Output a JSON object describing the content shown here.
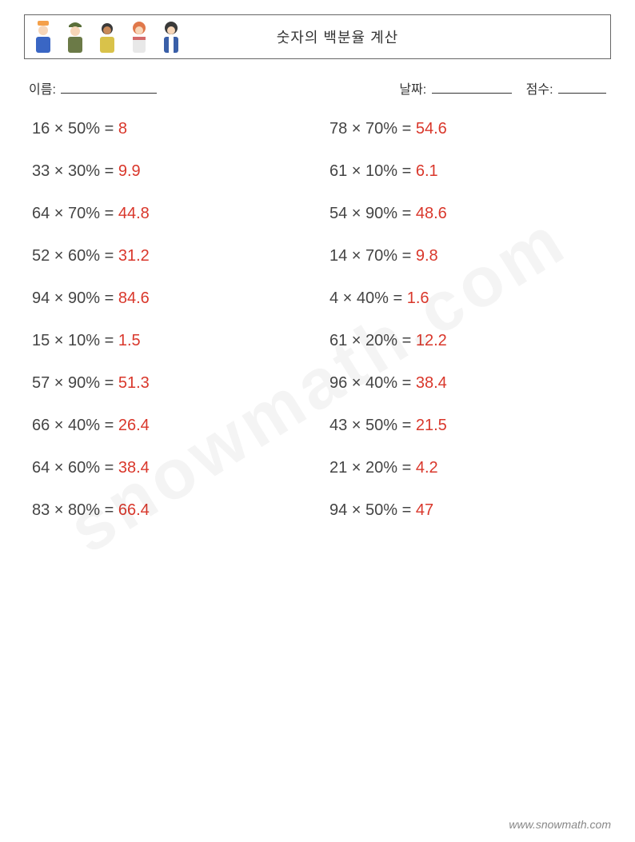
{
  "header": {
    "title": "숫자의 백분율 계산"
  },
  "meta": {
    "name_label": "이름:",
    "date_label": "날짜:",
    "score_label": "점수:"
  },
  "colors": {
    "answer": "#d9372b",
    "text": "#444444",
    "border": "#666666"
  },
  "problems_left": [
    {
      "expr": "16 × 50% = ",
      "ans": "8"
    },
    {
      "expr": "33 × 30% = ",
      "ans": "9.9"
    },
    {
      "expr": "64 × 70% = ",
      "ans": "44.8"
    },
    {
      "expr": "52 × 60% = ",
      "ans": "31.2"
    },
    {
      "expr": "94 × 90% = ",
      "ans": "84.6"
    },
    {
      "expr": "15 × 10% = ",
      "ans": "1.5"
    },
    {
      "expr": "57 × 90% = ",
      "ans": "51.3"
    },
    {
      "expr": "66 × 40% = ",
      "ans": "26.4"
    },
    {
      "expr": "64 × 60% = ",
      "ans": "38.4"
    },
    {
      "expr": "83 × 80% = ",
      "ans": "66.4"
    }
  ],
  "problems_right": [
    {
      "expr": "78 × 70% = ",
      "ans": "54.6"
    },
    {
      "expr": "61 × 10% = ",
      "ans": "6.1"
    },
    {
      "expr": "54 × 90% = ",
      "ans": "48.6"
    },
    {
      "expr": "14 × 70% = ",
      "ans": "9.8"
    },
    {
      "expr": "4 × 40% = ",
      "ans": "1.6"
    },
    {
      "expr": "61 × 20% = ",
      "ans": "12.2"
    },
    {
      "expr": "96 × 40% = ",
      "ans": "38.4"
    },
    {
      "expr": "43 × 50% = ",
      "ans": "21.5"
    },
    {
      "expr": "21 × 20% = ",
      "ans": "4.2"
    },
    {
      "expr": "94 × 50% = ",
      "ans": "47"
    }
  ],
  "watermark": "snowmath.com",
  "footer": "www.snowmath.com"
}
